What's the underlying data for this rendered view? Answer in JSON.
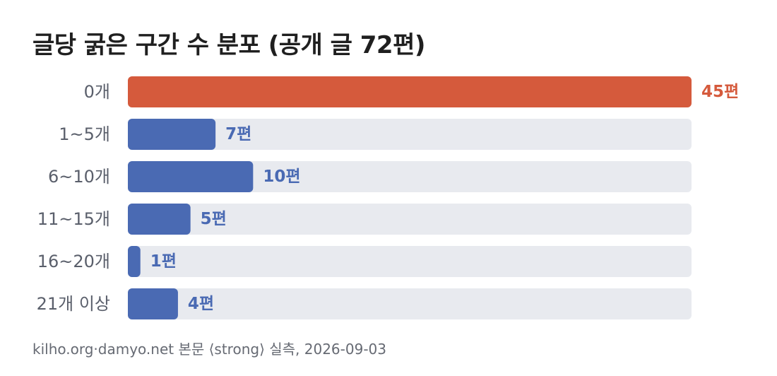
{
  "title": "글당 굵은 구간 수 분포 (공개 글 72편)",
  "source": "kilho.org·damyo.net 본문 ⟨strong⟩ 실측, 2026-09-03",
  "colors": {
    "highlight": "#d55a3c",
    "bar": "#4a6ab3",
    "track": "#e8eaef",
    "category_label": "#5a5f6b",
    "title": "#1f1f1f"
  },
  "chart_data": {
    "type": "bar",
    "orientation": "horizontal",
    "categories": [
      "0개",
      "1~5개",
      "6~10개",
      "11~15개",
      "16~20개",
      "21개 이상"
    ],
    "values": [
      45,
      7,
      10,
      5,
      1,
      4
    ],
    "value_labels": [
      "45편",
      "7편",
      "10편",
      "5편",
      "1편",
      "4편"
    ],
    "highlight_index": 0,
    "xlim": [
      0,
      45
    ],
    "grid": false,
    "legend": "none"
  }
}
